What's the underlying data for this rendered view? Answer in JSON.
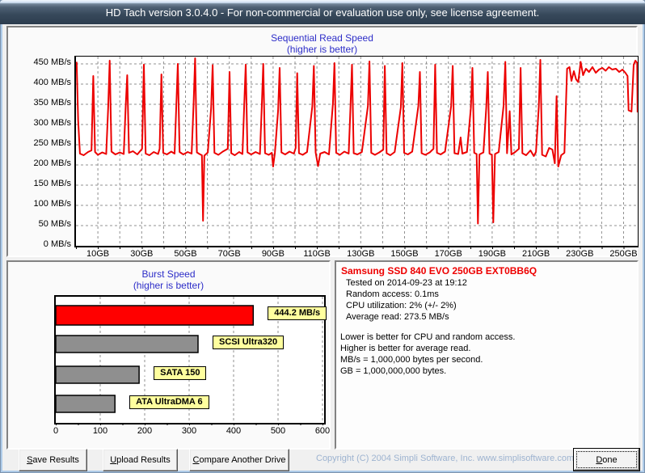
{
  "window": {
    "title": "HD Tach version 3.0.4.0  - For non-commercial or evaluation use only, see license agreement."
  },
  "colors": {
    "line_red": "#ec0000",
    "bar_red": "#ff0000",
    "bar_gray": "#8f8f8f",
    "grid_gray": "#909090",
    "title_blue": "#2d2dc8",
    "label_yellow": "#ffff9e",
    "copyright_blue": "#9db3d0",
    "drive_title_red": "#ee0000"
  },
  "chart_data": [
    {
      "type": "line",
      "title": "Sequential Read Speed",
      "subtitle": "(higher is better)",
      "x_unit": "GB",
      "y_unit": "MB/s",
      "xlim": [
        0,
        256.5
      ],
      "ylim": [
        0,
        468
      ],
      "grid": "dashed, vertical every 10GB, horizontal every 50 MB/s",
      "y_tick_labels": [
        "450 MB/s",
        "400 MB/s",
        "350 MB/s",
        "300 MB/s",
        "250 MB/s",
        "200 MB/s",
        "150 MB/s",
        "100 MB/s",
        "50 MB/s",
        "0 MB/s"
      ],
      "y_tick_values": [
        450,
        400,
        350,
        300,
        250,
        200,
        150,
        100,
        50,
        0
      ],
      "x_tick_labels": [
        "10GB",
        "30GB",
        "50GB",
        "70GB",
        "90GB",
        "110GB",
        "130GB",
        "150GB",
        "170GB",
        "190GB",
        "210GB",
        "230GB",
        "250GB"
      ],
      "x_tick_values": [
        10,
        30,
        50,
        70,
        90,
        110,
        130,
        150,
        170,
        190,
        210,
        230,
        250
      ],
      "points": [
        [
          0.3,
          455
        ],
        [
          1.0,
          310
        ],
        [
          1.8,
          228
        ],
        [
          3.5,
          224
        ],
        [
          5.5,
          232
        ],
        [
          7.1,
          236
        ],
        [
          7.9,
          420
        ],
        [
          8.7,
          232
        ],
        [
          10,
          225
        ],
        [
          12,
          231
        ],
        [
          13.8,
          227
        ],
        [
          14.7,
          340
        ],
        [
          15.4,
          458
        ],
        [
          16.2,
          233
        ],
        [
          18,
          226
        ],
        [
          20,
          231
        ],
        [
          21.8,
          227
        ],
        [
          22.7,
          345
        ],
        [
          23.4,
          422
        ],
        [
          24.2,
          230
        ],
        [
          26,
          234
        ],
        [
          28,
          226
        ],
        [
          30.2,
          240
        ],
        [
          31,
          448
        ],
        [
          31.8,
          228
        ],
        [
          33.5,
          224
        ],
        [
          35.5,
          232
        ],
        [
          37.5,
          227
        ],
        [
          38.2,
          240
        ],
        [
          39,
          424
        ],
        [
          39.8,
          230
        ],
        [
          41.5,
          226
        ],
        [
          43.5,
          233
        ],
        [
          45,
          228
        ],
        [
          45.8,
          345
        ],
        [
          46.5,
          450
        ],
        [
          47.3,
          232
        ],
        [
          49,
          226
        ],
        [
          51,
          232
        ],
        [
          52.8,
          228
        ],
        [
          53.7,
          350
        ],
        [
          54.4,
          464
        ],
        [
          55.2,
          231
        ],
        [
          56.4,
          227
        ],
        [
          57.5,
          224
        ],
        [
          58,
          62
        ],
        [
          58.6,
          223
        ],
        [
          60.2,
          231
        ],
        [
          61.7,
          340
        ],
        [
          62.4,
          447
        ],
        [
          63.2,
          230
        ],
        [
          65,
          225
        ],
        [
          67,
          233
        ],
        [
          69.3,
          240
        ],
        [
          70.1,
          430
        ],
        [
          70.9,
          229
        ],
        [
          72.5,
          224
        ],
        [
          74.5,
          232
        ],
        [
          76,
          227
        ],
        [
          76.8,
          345
        ],
        [
          77.5,
          448
        ],
        [
          78.3,
          231
        ],
        [
          80,
          226
        ],
        [
          82,
          232
        ],
        [
          84,
          227
        ],
        [
          84.8,
          340
        ],
        [
          85.5,
          450
        ],
        [
          86.3,
          229
        ],
        [
          88,
          225
        ],
        [
          89.4,
          230
        ],
        [
          90,
          196
        ],
        [
          90.8,
          230
        ],
        [
          92.3,
          335
        ],
        [
          93,
          440
        ],
        [
          93.8,
          231
        ],
        [
          95.5,
          226
        ],
        [
          97.5,
          233
        ],
        [
          99.5,
          228
        ],
        [
          100.3,
          242
        ],
        [
          101,
          427
        ],
        [
          101.8,
          229
        ],
        [
          103.5,
          225
        ],
        [
          105.5,
          232
        ],
        [
          107.9,
          345
        ],
        [
          108.6,
          445
        ],
        [
          109.4,
          231
        ],
        [
          110.5,
          197
        ],
        [
          111.5,
          228
        ],
        [
          113.5,
          232
        ],
        [
          115.5,
          226
        ],
        [
          117.3,
          352
        ],
        [
          118,
          452
        ],
        [
          118.8,
          230
        ],
        [
          120.5,
          225
        ],
        [
          122.5,
          233
        ],
        [
          124.5,
          228
        ],
        [
          125.3,
          342
        ],
        [
          126,
          448
        ],
        [
          126.8,
          229
        ],
        [
          128.5,
          226
        ],
        [
          130.5,
          232
        ],
        [
          133.3,
          346
        ],
        [
          134,
          456
        ],
        [
          134.8,
          230
        ],
        [
          136.5,
          225
        ],
        [
          138.5,
          231
        ],
        [
          140.3,
          238
        ],
        [
          141,
          445
        ],
        [
          141.8,
          229
        ],
        [
          143.5,
          224
        ],
        [
          145.5,
          232
        ],
        [
          148.3,
          342
        ],
        [
          149,
          452
        ],
        [
          149.8,
          230
        ],
        [
          151.5,
          226
        ],
        [
          153.5,
          233
        ],
        [
          156.3,
          346
        ],
        [
          157,
          430
        ],
        [
          157.8,
          229
        ],
        [
          159.5,
          225
        ],
        [
          161.5,
          231
        ],
        [
          163.2,
          240
        ],
        [
          164,
          448
        ],
        [
          164.8,
          230
        ],
        [
          166.5,
          226
        ],
        [
          168.5,
          233
        ],
        [
          171.3,
          346
        ],
        [
          172,
          445
        ],
        [
          172.8,
          229
        ],
        [
          174.5,
          227
        ],
        [
          175.6,
          268
        ],
        [
          176.4,
          228
        ],
        [
          178.5,
          232
        ],
        [
          180.3,
          342
        ],
        [
          181,
          440
        ],
        [
          181.8,
          230
        ],
        [
          182.9,
          227
        ],
        [
          183.5,
          55
        ],
        [
          184.2,
          226
        ],
        [
          186,
          231
        ],
        [
          187.3,
          342
        ],
        [
          188,
          430
        ],
        [
          188.8,
          228
        ],
        [
          189.9,
          225
        ],
        [
          190.5,
          58
        ],
        [
          191.3,
          227
        ],
        [
          193,
          232
        ],
        [
          195.2,
          346
        ],
        [
          196,
          455
        ],
        [
          196.8,
          229
        ],
        [
          198,
          333
        ],
        [
          198.8,
          226
        ],
        [
          200.5,
          232
        ],
        [
          202.2,
          240
        ],
        [
          203,
          440
        ],
        [
          203.8,
          229
        ],
        [
          205.5,
          224
        ],
        [
          207.5,
          236
        ],
        [
          209,
          222
        ],
        [
          210,
          232
        ],
        [
          211.3,
          344
        ],
        [
          212,
          460
        ],
        [
          212.8,
          225
        ],
        [
          214.5,
          221
        ],
        [
          216,
          242
        ],
        [
          217.5,
          238
        ],
        [
          218.6,
          204
        ],
        [
          219.4,
          370
        ],
        [
          220.2,
          196
        ],
        [
          221.5,
          224
        ],
        [
          223,
          230
        ],
        [
          224.2,
          438
        ],
        [
          225.3,
          442
        ],
        [
          226.2,
          408
        ],
        [
          227.3,
          432
        ],
        [
          228.3,
          412
        ],
        [
          229.3,
          405
        ],
        [
          230.4,
          455
        ],
        [
          231.5,
          422
        ],
        [
          232.8,
          438
        ],
        [
          234.2,
          430
        ],
        [
          235.8,
          442
        ],
        [
          237.3,
          428
        ],
        [
          238.8,
          436
        ],
        [
          240.3,
          440
        ],
        [
          241.8,
          433
        ],
        [
          243.3,
          442
        ],
        [
          244.8,
          436
        ],
        [
          246.5,
          438
        ],
        [
          248,
          430
        ],
        [
          249.5,
          436
        ],
        [
          250.8,
          428
        ],
        [
          251.8,
          420
        ],
        [
          252.3,
          335
        ],
        [
          253.6,
          332
        ],
        [
          254.6,
          448
        ],
        [
          255.4,
          458
        ],
        [
          256.2,
          452
        ],
        [
          256.4,
          330
        ]
      ]
    },
    {
      "type": "bar",
      "title": "Burst Speed",
      "subtitle": "(higher is better)",
      "orientation": "horizontal",
      "xlim": [
        0,
        600
      ],
      "x_tick_labels": [
        "0",
        "100",
        "200",
        "300",
        "400",
        "500",
        "600"
      ],
      "x_tick_values": [
        0,
        100,
        200,
        300,
        400,
        500,
        600
      ],
      "grid": "dashed vertical at each labeled hundred",
      "bars": [
        {
          "label": "444.2 MB/s",
          "value": 444.2,
          "color": "#ff0000"
        },
        {
          "label": "SCSI Ultra320",
          "value": 320,
          "color": "#8f8f8f"
        },
        {
          "label": "SATA 150",
          "value": 187.5,
          "color": "#8f8f8f"
        },
        {
          "label": "ATA UltraDMA 6",
          "value": 133,
          "color": "#8f8f8f"
        }
      ]
    }
  ],
  "info_panel": {
    "drive_title": "Samsung SSD 840 EVO 250GB EXT0BB6Q",
    "details": [
      "Tested on 2014-09-23 at 19:12",
      "Random access: 0.1ms",
      "CPU utilization: 2% (+/- 2%)",
      "Average read: 273.5 MB/s"
    ],
    "notes": [
      "Lower is better for CPU and random access.",
      "Higher is better for average read.",
      "MB/s = 1,000,000 bytes per second.",
      "GB = 1,000,000,000 bytes."
    ]
  },
  "footer": {
    "buttons": [
      {
        "label": "Save Results",
        "mnemonic": "S"
      },
      {
        "label": "Upload Results",
        "mnemonic": "U"
      },
      {
        "label": "Compare Another Drive",
        "mnemonic": "C"
      }
    ],
    "done": {
      "label": "Done",
      "mnemonic": "D"
    },
    "copyright": "Copyright (C) 2004 Simpli Software, Inc. www.simplisoftware.com"
  }
}
